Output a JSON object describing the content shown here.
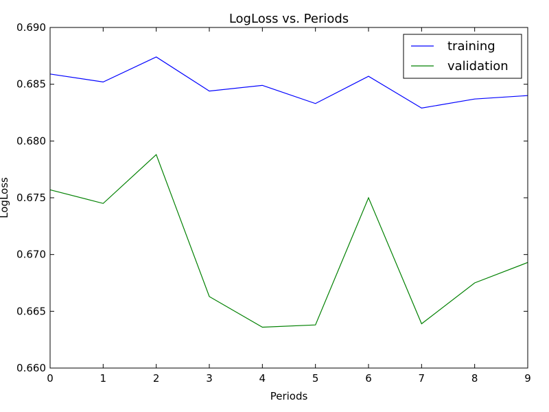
{
  "chart_data": {
    "type": "line",
    "title": "LogLoss vs. Periods",
    "xlabel": "Periods",
    "ylabel": "LogLoss",
    "x": [
      0,
      1,
      2,
      3,
      4,
      5,
      6,
      7,
      8,
      9
    ],
    "xlim": [
      0,
      9
    ],
    "ylim": [
      0.66,
      0.69
    ],
    "xticks": [
      "0",
      "1",
      "2",
      "3",
      "4",
      "5",
      "6",
      "7",
      "8",
      "9"
    ],
    "yticks": [
      "0.660",
      "0.665",
      "0.670",
      "0.675",
      "0.680",
      "0.685",
      "0.690"
    ],
    "grid": false,
    "legend_position": "top-right",
    "series": [
      {
        "name": "training",
        "color": "#0000ff",
        "values": [
          0.6859,
          0.6852,
          0.6874,
          0.6844,
          0.6849,
          0.6833,
          0.6857,
          0.6829,
          0.6837,
          0.684
        ]
      },
      {
        "name": "validation",
        "color": "#008000",
        "values": [
          0.6757,
          0.6745,
          0.6788,
          0.6663,
          0.6636,
          0.6638,
          0.675,
          0.6639,
          0.6675,
          0.6693
        ]
      }
    ]
  }
}
